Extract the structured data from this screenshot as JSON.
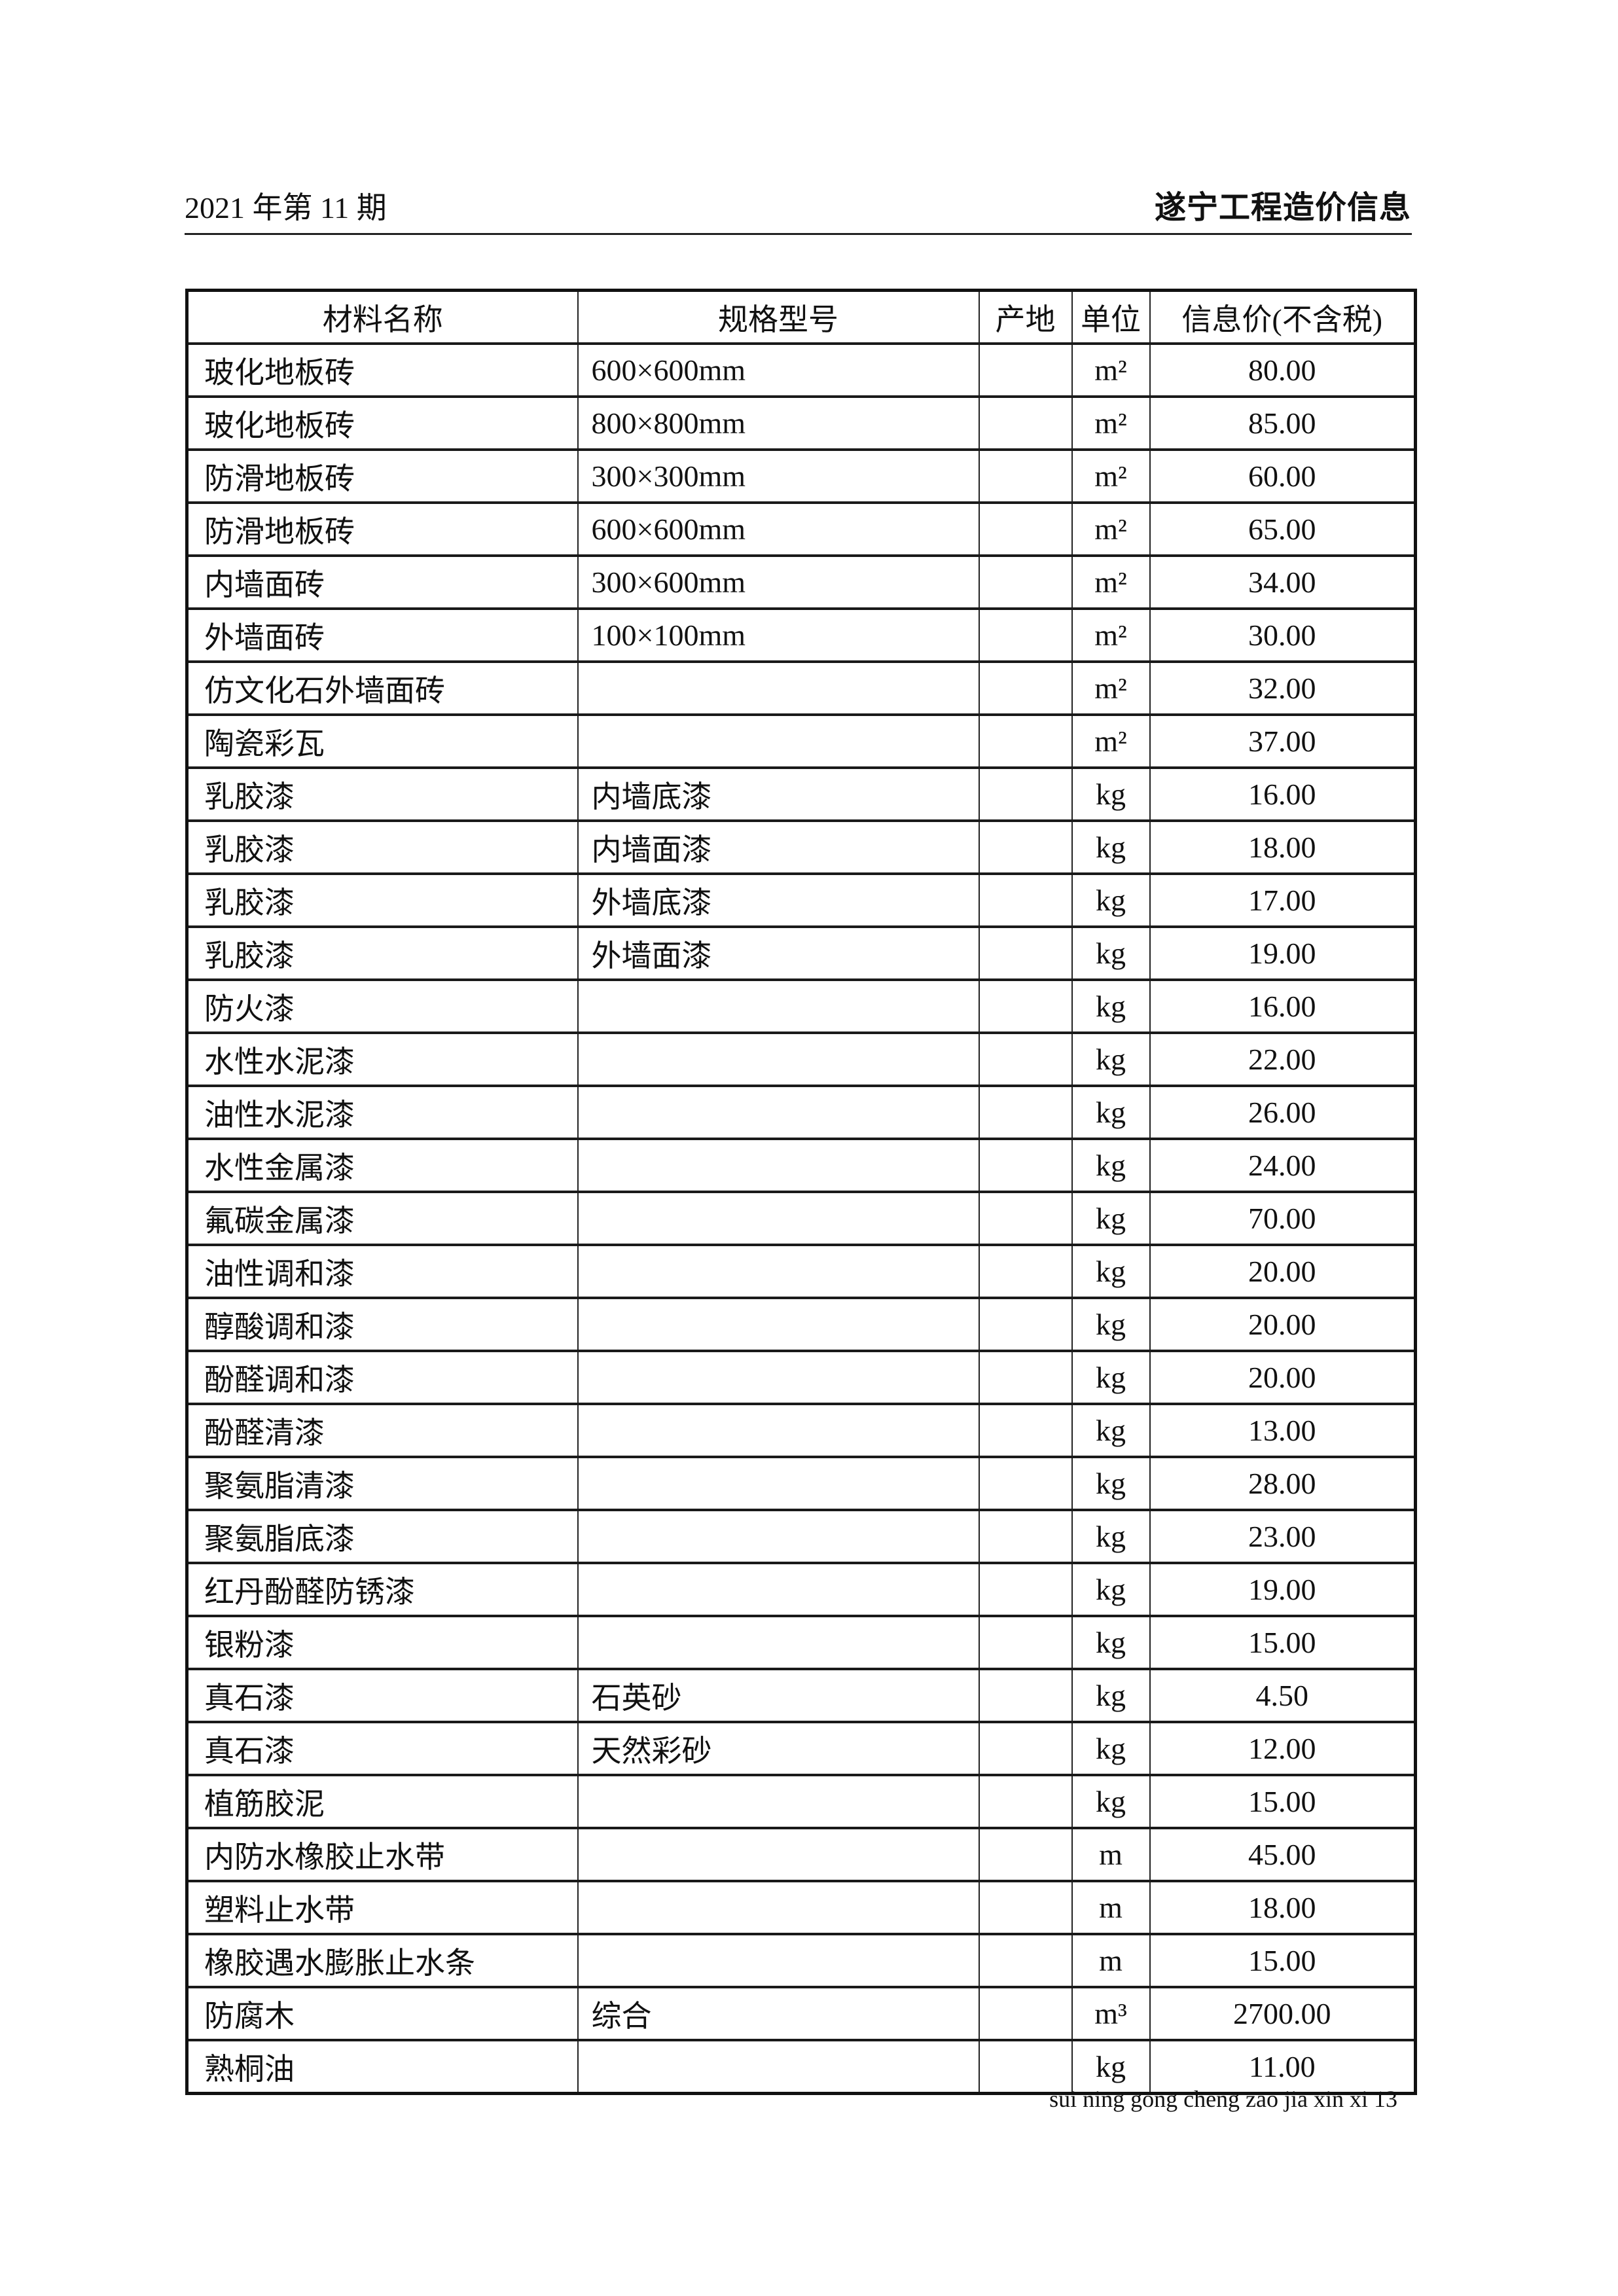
{
  "header": {
    "issue": "2021 年第 11 期",
    "publication": "遂宁工程造价信息"
  },
  "table": {
    "columns": [
      "材料名称",
      "规格型号",
      "产地",
      "单位",
      "信息价(不含税)"
    ],
    "rows": [
      {
        "name": "玻化地板砖",
        "spec": "600×600mm",
        "origin": "",
        "unit": "m²",
        "price": "80.00"
      },
      {
        "name": "玻化地板砖",
        "spec": "800×800mm",
        "origin": "",
        "unit": "m²",
        "price": "85.00"
      },
      {
        "name": "防滑地板砖",
        "spec": "300×300mm",
        "origin": "",
        "unit": "m²",
        "price": "60.00"
      },
      {
        "name": "防滑地板砖",
        "spec": "600×600mm",
        "origin": "",
        "unit": "m²",
        "price": "65.00"
      },
      {
        "name": "内墙面砖",
        "spec": "300×600mm",
        "origin": "",
        "unit": "m²",
        "price": "34.00"
      },
      {
        "name": "外墙面砖",
        "spec": "100×100mm",
        "origin": "",
        "unit": "m²",
        "price": "30.00"
      },
      {
        "name": "仿文化石外墙面砖",
        "spec": "",
        "origin": "",
        "unit": "m²",
        "price": "32.00"
      },
      {
        "name": "陶瓷彩瓦",
        "spec": "",
        "origin": "",
        "unit": "m²",
        "price": "37.00"
      },
      {
        "name": "乳胶漆",
        "spec": "内墙底漆",
        "origin": "",
        "unit": "kg",
        "price": "16.00"
      },
      {
        "name": "乳胶漆",
        "spec": "内墙面漆",
        "origin": "",
        "unit": "kg",
        "price": "18.00"
      },
      {
        "name": "乳胶漆",
        "spec": "外墙底漆",
        "origin": "",
        "unit": "kg",
        "price": "17.00"
      },
      {
        "name": "乳胶漆",
        "spec": "外墙面漆",
        "origin": "",
        "unit": "kg",
        "price": "19.00"
      },
      {
        "name": "防火漆",
        "spec": "",
        "origin": "",
        "unit": "kg",
        "price": "16.00"
      },
      {
        "name": "水性水泥漆",
        "spec": "",
        "origin": "",
        "unit": "kg",
        "price": "22.00"
      },
      {
        "name": "油性水泥漆",
        "spec": "",
        "origin": "",
        "unit": "kg",
        "price": "26.00"
      },
      {
        "name": "水性金属漆",
        "spec": "",
        "origin": "",
        "unit": "kg",
        "price": "24.00"
      },
      {
        "name": "氟碳金属漆",
        "spec": "",
        "origin": "",
        "unit": "kg",
        "price": "70.00"
      },
      {
        "name": "油性调和漆",
        "spec": "",
        "origin": "",
        "unit": "kg",
        "price": "20.00"
      },
      {
        "name": "醇酸调和漆",
        "spec": "",
        "origin": "",
        "unit": "kg",
        "price": "20.00"
      },
      {
        "name": "酚醛调和漆",
        "spec": "",
        "origin": "",
        "unit": "kg",
        "price": "20.00"
      },
      {
        "name": "酚醛清漆",
        "spec": "",
        "origin": "",
        "unit": "kg",
        "price": "13.00"
      },
      {
        "name": "聚氨脂清漆",
        "spec": "",
        "origin": "",
        "unit": "kg",
        "price": "28.00"
      },
      {
        "name": "聚氨脂底漆",
        "spec": "",
        "origin": "",
        "unit": "kg",
        "price": "23.00"
      },
      {
        "name": "红丹酚醛防锈漆",
        "spec": "",
        "origin": "",
        "unit": "kg",
        "price": "19.00"
      },
      {
        "name": "银粉漆",
        "spec": "",
        "origin": "",
        "unit": "kg",
        "price": "15.00"
      },
      {
        "name": "真石漆",
        "spec": "石英砂",
        "origin": "",
        "unit": "kg",
        "price": "4.50"
      },
      {
        "name": "真石漆",
        "spec": "天然彩砂",
        "origin": "",
        "unit": "kg",
        "price": "12.00"
      },
      {
        "name": "植筋胶泥",
        "spec": "",
        "origin": "",
        "unit": "kg",
        "price": "15.00"
      },
      {
        "name": "内防水橡胶止水带",
        "spec": "",
        "origin": "",
        "unit": "m",
        "price": "45.00"
      },
      {
        "name": "塑料止水带",
        "spec": "",
        "origin": "",
        "unit": "m",
        "price": "18.00"
      },
      {
        "name": "橡胶遇水膨胀止水条",
        "spec": "",
        "origin": "",
        "unit": "m",
        "price": "15.00"
      },
      {
        "name": "防腐木",
        "spec": "综合",
        "origin": "",
        "unit": "m³",
        "price": "2700.00"
      },
      {
        "name": "熟桐油",
        "spec": "",
        "origin": "",
        "unit": "kg",
        "price": "11.00"
      }
    ]
  },
  "footer": {
    "text": "sui ning gong cheng zao jia xin xi 13"
  }
}
